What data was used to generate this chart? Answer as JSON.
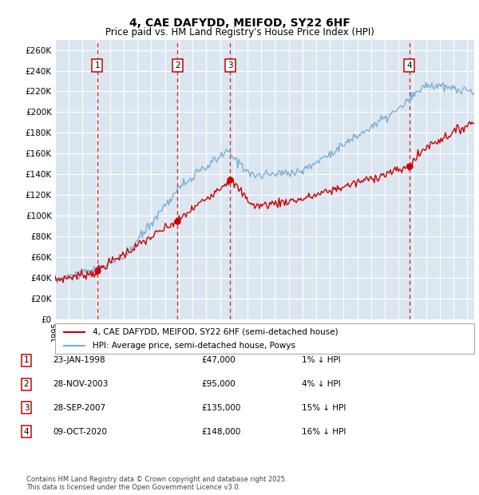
{
  "title": "4, CAE DAFYDD, MEIFOD, SY22 6HF",
  "subtitle": "Price paid vs. HM Land Registry's House Price Index (HPI)",
  "legend_red": "4, CAE DAFYDD, MEIFOD, SY22 6HF (semi-detached house)",
  "legend_blue": "HPI: Average price, semi-detached house, Powys",
  "purchases": [
    {
      "num": 1,
      "date_label": "23-JAN-1998",
      "price": 47000,
      "pct": "1%",
      "date_x": 1998.06
    },
    {
      "num": 2,
      "date_label": "28-NOV-2003",
      "price": 95000,
      "pct": "4%",
      "date_x": 2003.91
    },
    {
      "num": 3,
      "date_label": "28-SEP-2007",
      "price": 135000,
      "pct": "15%",
      "date_x": 2007.74
    },
    {
      "num": 4,
      "date_label": "09-OCT-2020",
      "price": 148000,
      "pct": "16%",
      "date_x": 2020.77
    }
  ],
  "footer": "Contains HM Land Registry data © Crown copyright and database right 2025.\nThis data is licensed under the Open Government Licence v3.0.",
  "background_color": "#dce6f0",
  "grid_color": "#ffffff",
  "red_color": "#cc0000",
  "blue_color": "#7bafd4",
  "dashed_color": "#cc0000",
  "ylim": [
    0,
    270000
  ],
  "xlim": [
    1995.0,
    2025.5
  ],
  "ytick_step": 20000
}
